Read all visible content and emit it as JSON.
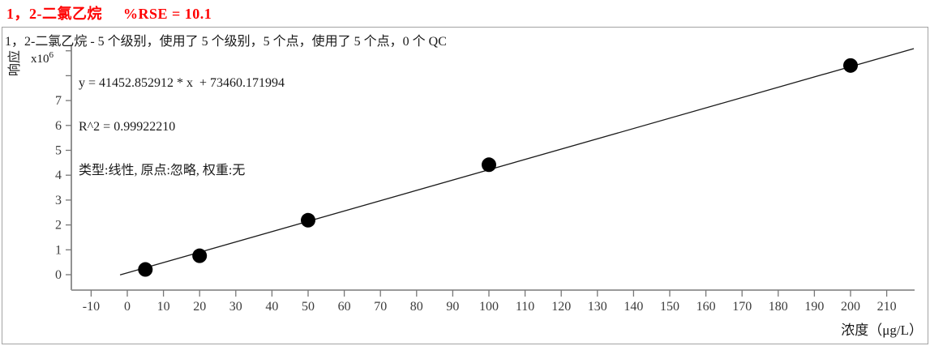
{
  "header": {
    "compound": "1，2-二氯乙烷",
    "rse": "%RSE = 10.1",
    "title_color": "#ff0000"
  },
  "chart_data": {
    "type": "scatter",
    "title": "1，2-二氯乙烷 - 5 个级别，使用了 5 个级别，5 个点，使用了 5 个点，0 个 QC",
    "xlabel": "浓度（μg/L）",
    "ylabel": "响应",
    "y_multiplier": {
      "base": "x10",
      "exponent": "6"
    },
    "equation_text": "y = 41452.852912 * x  + 73460.171994",
    "r_squared_text": "R^2 = 0.99922210",
    "fit_settings_text": "类型:线性, 原点:忽略, 权重:无",
    "fit_line": {
      "slope": 41452.852912,
      "intercept": 73460.171994,
      "draw_from_x": -2,
      "draw_to_x": 217.5
    },
    "points": [
      {
        "conc": 5,
        "response": 210000
      },
      {
        "conc": 20,
        "response": 760000
      },
      {
        "conc": 50,
        "response": 2190000
      },
      {
        "conc": 100,
        "response": 4420000
      },
      {
        "conc": 200,
        "response": 8410000
      }
    ],
    "x_ticks": [
      -10,
      0,
      10,
      20,
      30,
      40,
      50,
      60,
      70,
      80,
      90,
      100,
      110,
      120,
      130,
      140,
      150,
      160,
      170,
      180,
      190,
      200,
      210
    ],
    "y_ticks_labeled": [
      0,
      1,
      2,
      3,
      4,
      5,
      6,
      7
    ],
    "y_ticks_unlabeled": [
      8,
      9
    ],
    "y_unit_scale": 1000000,
    "xlim": [
      -15.5,
      218
    ],
    "ylim": [
      -650000,
      9300000
    ],
    "grid": false,
    "legend": "none",
    "point_color": "#000000",
    "line_color": "#1a1a1a"
  }
}
